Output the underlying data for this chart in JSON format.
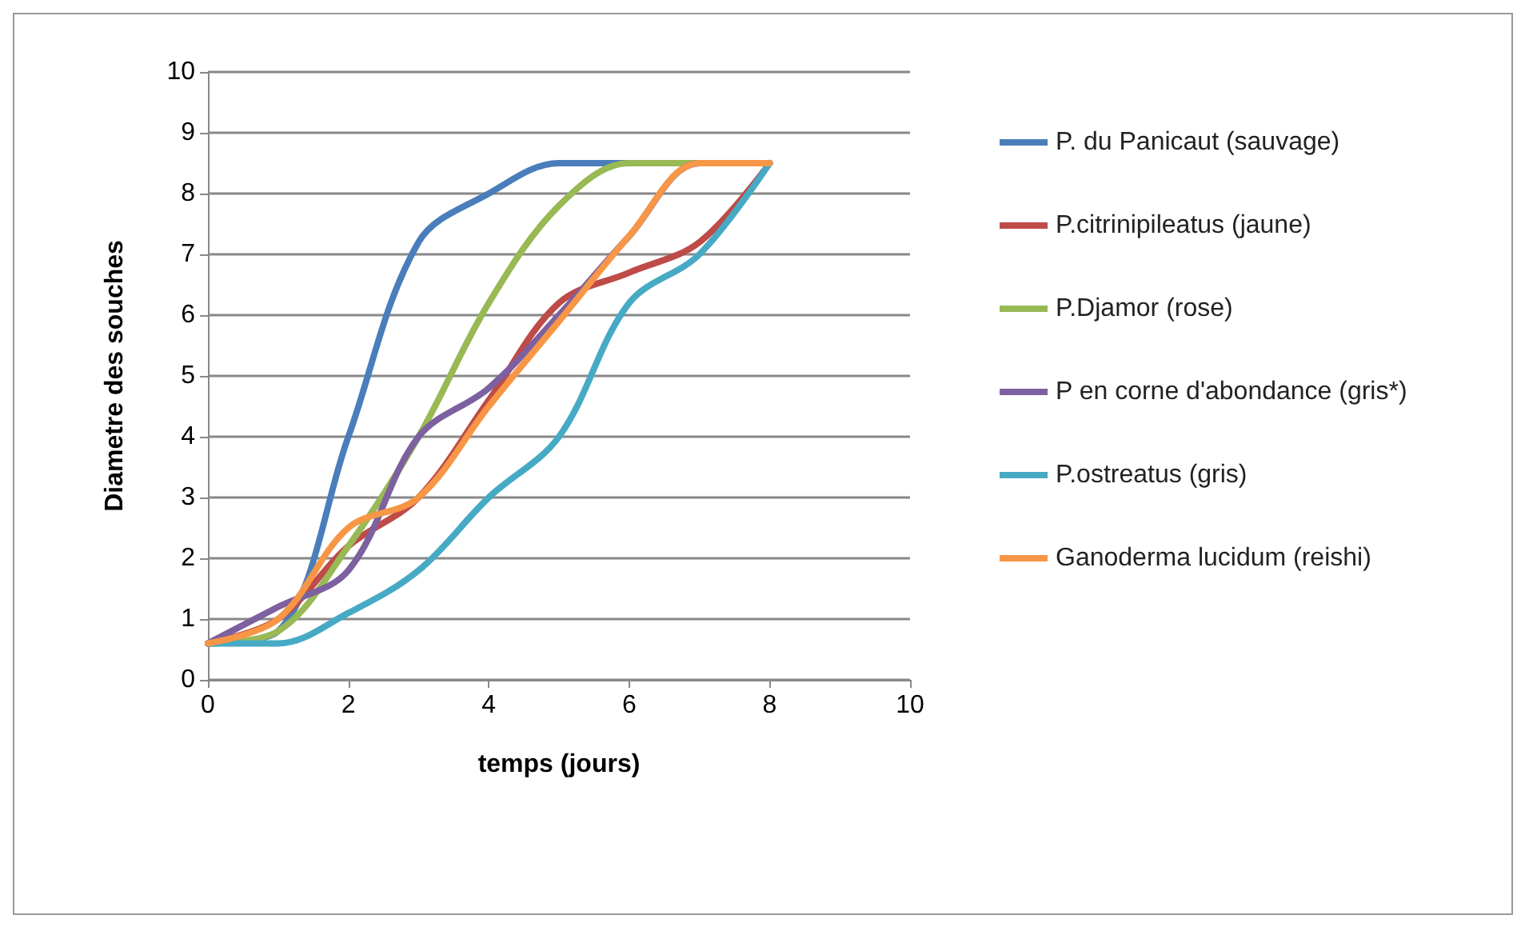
{
  "chart_data": {
    "type": "line",
    "xlabel": "temps (jours)",
    "ylabel": "Diametre des souches",
    "x": [
      0,
      1,
      2,
      3,
      4,
      5,
      6,
      7,
      8
    ],
    "xlim": [
      0,
      10
    ],
    "xticks": [
      0,
      2,
      4,
      6,
      8,
      10
    ],
    "ylim": [
      0,
      10
    ],
    "yticks": [
      0,
      1,
      2,
      3,
      4,
      5,
      6,
      7,
      8,
      9,
      10
    ],
    "grid": "y",
    "legend": "right",
    "marker": "none",
    "line_style": "solid",
    "series": [
      {
        "name": "P. du Panicaut (sauvage)",
        "color": "#4a7ebb",
        "values": [
          0.6,
          0.8,
          4.0,
          7.2,
          8.0,
          8.5,
          8.5,
          8.5,
          8.5
        ]
      },
      {
        "name": "P.citrinipileatus (jaune)",
        "color": "#be4b48",
        "values": [
          0.6,
          1.0,
          2.2,
          3.0,
          4.6,
          6.2,
          6.7,
          7.2,
          8.5
        ]
      },
      {
        "name": "P.Djamor (rose)",
        "color": "#98b954",
        "values": [
          0.6,
          0.8,
          2.2,
          4.0,
          6.2,
          7.8,
          8.5,
          8.5,
          8.5
        ]
      },
      {
        "name": "P en corne d'abondance (gris*)",
        "color": "#7d60a0",
        "values": [
          0.6,
          1.2,
          1.8,
          4.0,
          4.8,
          6.0,
          7.3,
          8.5,
          8.5
        ]
      },
      {
        "name": "P.ostreatus (gris)",
        "color": "#46aac5",
        "values": [
          0.6,
          0.6,
          1.1,
          1.8,
          3.0,
          4.0,
          6.2,
          7.0,
          8.5
        ]
      },
      {
        "name": "Ganoderma lucidum (reishi)",
        "color": "#f79646",
        "values": [
          0.6,
          1.0,
          2.5,
          3.0,
          4.5,
          5.9,
          7.3,
          8.5,
          8.5
        ]
      }
    ]
  }
}
